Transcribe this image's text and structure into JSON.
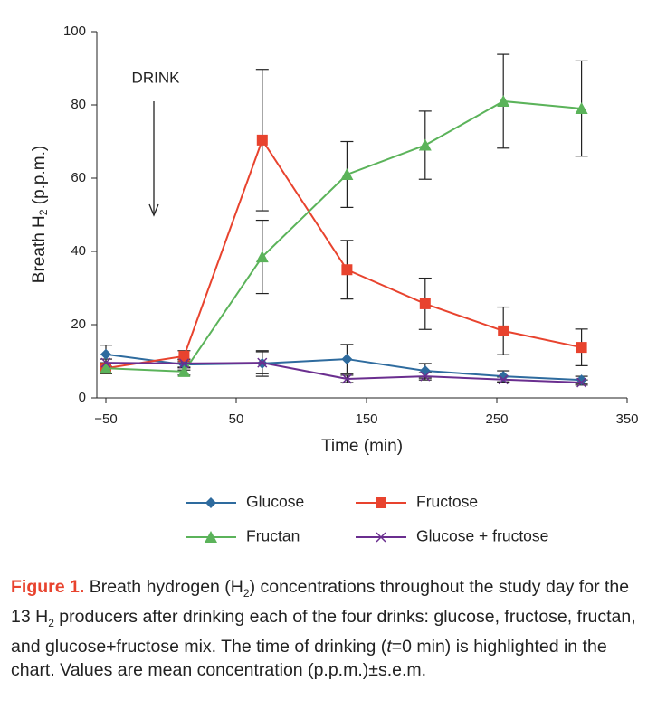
{
  "chart_data": {
    "type": "line",
    "ylabel": [
      "Breath H",
      "2",
      " (p.p.m.)"
    ],
    "xlabel": "Time (min)",
    "annotation": "DRINK",
    "xlim": [
      -50,
      350
    ],
    "xticks": [
      {
        "value": -50,
        "label": "−50"
      },
      50,
      150,
      250,
      350
    ],
    "ylim": [
      0,
      100
    ],
    "yticks": [
      0,
      20,
      40,
      60,
      80,
      100
    ],
    "x": [
      -50,
      10,
      70,
      135,
      195,
      255,
      315
    ],
    "series": [
      {
        "name": "Glucose",
        "color": "#2e6b9e",
        "marker": "diamond",
        "values": [
          11.9,
          9.1,
          9.4,
          10.6,
          7.4,
          5.9,
          4.9
        ],
        "errors": [
          2.5,
          1.5,
          3.5,
          4,
          2,
          1.5,
          1
        ]
      },
      {
        "name": "Fructose",
        "color": "#e8432e",
        "marker": "square",
        "values": [
          8.1,
          11.4,
          70.4,
          35,
          25.7,
          18.3,
          13.8
        ],
        "errors": [
          1.5,
          1.5,
          19.3,
          8,
          7,
          6.5,
          5
        ]
      },
      {
        "name": "Fructan",
        "color": "#5bb35a",
        "marker": "triangle",
        "values": [
          8.1,
          7.2,
          38.5,
          61,
          69,
          81,
          79
        ],
        "errors": [
          1.5,
          1,
          10,
          9,
          9.3,
          12.8,
          13
        ]
      },
      {
        "name": "Glucose + fructose",
        "color": "#6a2e8f",
        "marker": "x",
        "values": [
          9.6,
          9.4,
          9.6,
          5.2,
          5.9,
          5.0,
          4.2
        ],
        "errors": [
          1,
          1,
          3,
          1,
          1,
          0.7,
          0.7
        ]
      }
    ]
  },
  "caption": {
    "label": "Figure 1.",
    "parts": [
      "Breath hydrogen (H",
      "2",
      ") concentrations throughout the study day for the 13 H",
      "2",
      " producers after drinking each of the four drinks: glucose, fructose, fructan, and glucose+fructose mix. The time of drinking (",
      "t",
      "=0 min) is highlighted in the chart. Values are mean concentration (p.p.m.)±s.e.m."
    ]
  }
}
